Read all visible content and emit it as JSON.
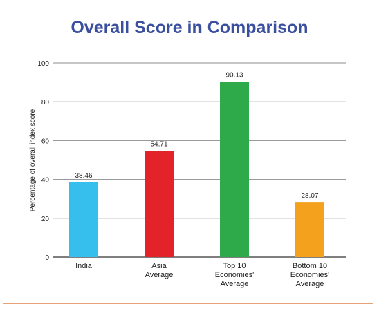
{
  "chart_data": {
    "type": "bar",
    "title": "Overall Score in Comparison",
    "ylabel": "Percentage of overall index score",
    "xlabel": "",
    "ylim": [
      0,
      100
    ],
    "yticks": [
      0,
      20,
      40,
      60,
      80,
      100
    ],
    "grid": true,
    "categories": [
      [
        "India"
      ],
      [
        "Asia",
        "Average"
      ],
      [
        "Top 10",
        "Economies'",
        "Average"
      ],
      [
        "Bottom 10",
        "Economies'",
        "Average"
      ]
    ],
    "values": [
      38.46,
      54.71,
      90.13,
      28.07
    ],
    "value_labels": [
      "38.46",
      "54.71",
      "90.13",
      "28.07"
    ],
    "colors": [
      "#36bfed",
      "#e3222a",
      "#2faa4a",
      "#f4a11d"
    ]
  },
  "colors": {
    "title": "#3a4fa0",
    "frame": "#e8a27a",
    "grid": "#8c8c8c"
  }
}
